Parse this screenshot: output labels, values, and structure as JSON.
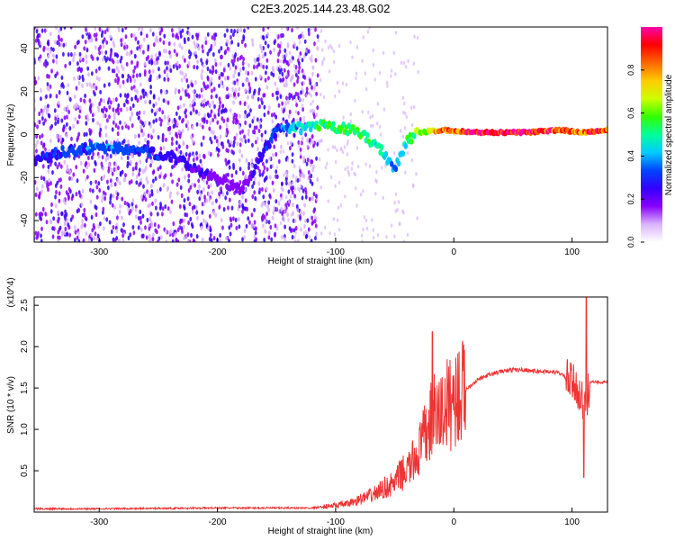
{
  "title": "C2E3.2025.144.23.48.G02",
  "chart_data": [
    {
      "type": "heatmap",
      "xlabel": "Height of straight line (km)",
      "ylabel": "Frequency (Hz)",
      "xlim": [
        -355,
        130
      ],
      "ylim": [
        -50,
        50
      ],
      "xticks": [
        -300,
        -200,
        -100,
        0,
        100
      ],
      "yticks": [
        -40,
        -20,
        0,
        20,
        40
      ],
      "colorbar": {
        "label": "Normalized spectral amplitude",
        "range": [
          0.0,
          1.0
        ],
        "ticks": [
          0.0,
          0.2,
          0.4,
          0.6,
          0.8
        ],
        "colormap": [
          "#ffffff",
          "#d9b3ff",
          "#8800ff",
          "#3300ff",
          "#0044ff",
          "#00ccff",
          "#00ff99",
          "#33ff00",
          "#ccff00",
          "#ffcc00",
          "#ff6600",
          "#ff0000",
          "#ff00aa"
        ]
      },
      "signal_track": [
        {
          "x": -355,
          "y": -12,
          "amp": 0.25
        },
        {
          "x": -330,
          "y": -8,
          "amp": 0.3
        },
        {
          "x": -300,
          "y": -6,
          "amp": 0.35
        },
        {
          "x": -270,
          "y": -7,
          "amp": 0.3
        },
        {
          "x": -240,
          "y": -10,
          "amp": 0.25
        },
        {
          "x": -210,
          "y": -18,
          "amp": 0.2
        },
        {
          "x": -180,
          "y": -26,
          "amp": 0.15
        },
        {
          "x": -150,
          "y": 2,
          "amp": 0.3
        },
        {
          "x": -130,
          "y": 3,
          "amp": 0.45
        },
        {
          "x": -110,
          "y": 4,
          "amp": 0.5
        },
        {
          "x": -95,
          "y": 3,
          "amp": 0.55
        },
        {
          "x": -80,
          "y": 1,
          "amp": 0.55
        },
        {
          "x": -70,
          "y": -3,
          "amp": 0.5
        },
        {
          "x": -60,
          "y": -8,
          "amp": 0.45
        },
        {
          "x": -50,
          "y": -16,
          "amp": 0.35
        },
        {
          "x": -40,
          "y": -3,
          "amp": 0.5
        },
        {
          "x": -30,
          "y": 1,
          "amp": 0.6
        },
        {
          "x": -10,
          "y": 2,
          "amp": 0.8
        },
        {
          "x": 20,
          "y": 1,
          "amp": 0.95
        },
        {
          "x": 60,
          "y": 1,
          "amp": 0.95
        },
        {
          "x": 90,
          "y": 2,
          "amp": 0.85
        },
        {
          "x": 110,
          "y": 1,
          "amp": 0.9
        },
        {
          "x": 130,
          "y": 2,
          "amp": 0.85
        }
      ]
    },
    {
      "type": "line",
      "xlabel": "Height of straight line (km)",
      "ylabel": "SNR (10 * v/v)",
      "y_multiplier": "(x10^4)",
      "xlim": [
        -355,
        130
      ],
      "ylim": [
        0,
        2.6
      ],
      "xticks": [
        -300,
        -200,
        -100,
        0,
        100
      ],
      "yticks": [
        0.5,
        1.0,
        1.5,
        2.0,
        2.5
      ],
      "ytick_labels": [
        "0.5",
        "1.0",
        "1.5",
        "2.0",
        "2.5"
      ],
      "series": [
        {
          "color": "#ee3333",
          "x": [
            -355,
            -300,
            -200,
            -150,
            -120,
            -100,
            -90,
            -80,
            -70,
            -60,
            -50,
            -45,
            -40,
            -35,
            -30,
            -25,
            -20,
            -18,
            -15,
            -10,
            -5,
            0,
            10,
            20,
            30,
            40,
            50,
            60,
            70,
            80,
            90,
            95,
            100,
            105,
            108,
            110,
            112,
            115,
            120,
            130
          ],
          "y": [
            0.04,
            0.04,
            0.05,
            0.05,
            0.05,
            0.08,
            0.1,
            0.15,
            0.2,
            0.28,
            0.35,
            0.45,
            0.5,
            0.6,
            0.72,
            0.9,
            1.05,
            1.2,
            1.12,
            1.22,
            1.3,
            1.38,
            1.48,
            1.6,
            1.66,
            1.7,
            1.72,
            1.72,
            1.7,
            1.7,
            1.68,
            1.62,
            1.55,
            1.5,
            1.35,
            1.3,
            1.25,
            1.58,
            1.57,
            1.57
          ]
        }
      ]
    }
  ]
}
